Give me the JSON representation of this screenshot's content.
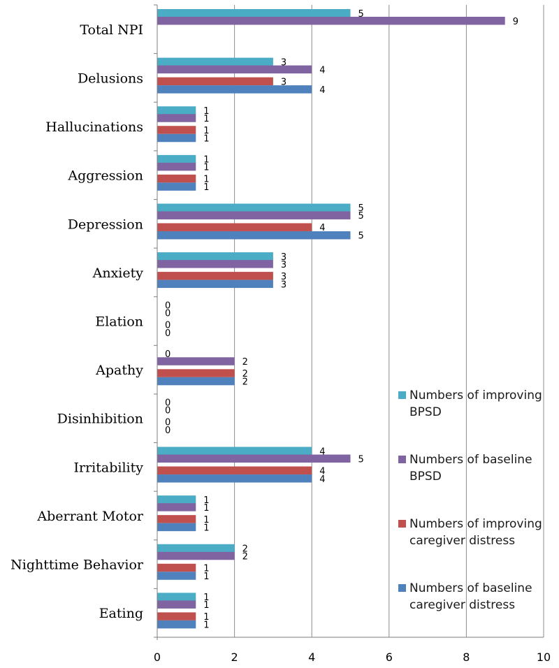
{
  "chart_data": {
    "type": "bar",
    "orientation": "horizontal",
    "categories": [
      "Total NPI",
      "Delusions",
      "Hallucinations",
      "Aggression",
      "Depression",
      "Anxiety",
      "Elation",
      "Apathy",
      "Disinhibition",
      "Irritability",
      "Aberrant Motor",
      "Nighttime Behavior",
      "Eating"
    ],
    "series": [
      {
        "name": "Numbers of improving BPSD",
        "legend_lines": [
          "Numbers of improving",
          "BPSD"
        ],
        "color": "#4BACC6",
        "values": [
          5,
          3,
          1,
          1,
          5,
          3,
          0,
          0,
          0,
          4,
          1,
          2,
          1
        ]
      },
      {
        "name": "Numbers of baseline BPSD",
        "legend_lines": [
          "Numbers of baseline",
          "BPSD"
        ],
        "color": "#8064A2",
        "values": [
          9,
          4,
          1,
          1,
          5,
          3,
          0,
          2,
          0,
          5,
          1,
          2,
          1
        ]
      },
      {
        "name": "Numbers of improving caregiver distress",
        "legend_lines": [
          "Numbers of improving",
          "caregiver distress"
        ],
        "color": "#C0504D",
        "values": [
          null,
          3,
          1,
          1,
          4,
          3,
          0,
          2,
          0,
          4,
          1,
          1,
          1
        ]
      },
      {
        "name": "Numbers of baseline caregiver distress",
        "legend_lines": [
          "Numbers of  baseline",
          "caregiver distress"
        ],
        "color": "#4F81BD",
        "values": [
          null,
          4,
          1,
          1,
          5,
          3,
          0,
          2,
          0,
          4,
          1,
          1,
          1
        ]
      }
    ],
    "xlim": [
      0,
      10
    ],
    "x_ticks": [
      "0",
      "2",
      "4",
      "6",
      "8",
      "10"
    ],
    "grid": "vertical",
    "legend_position": "bottom-right",
    "title": "",
    "xlabel": "",
    "ylabel": ""
  }
}
